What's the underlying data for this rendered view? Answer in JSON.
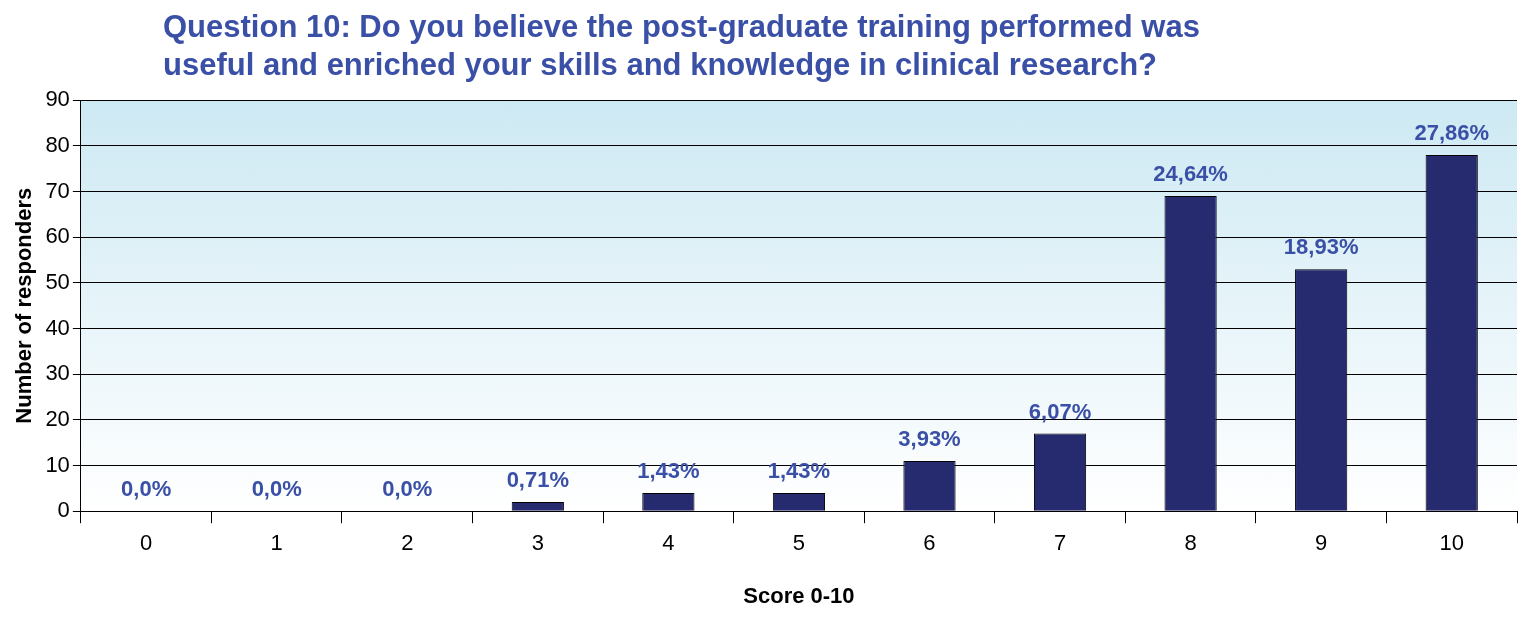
{
  "chart_data": {
    "type": "bar",
    "title": "Question 10: Do you believe the post-graduate training performed was useful and enriched your skills and knowledge in clinical research?",
    "xlabel": "Score 0-10",
    "ylabel": "Number of responders",
    "categories": [
      "0",
      "1",
      "2",
      "3",
      "4",
      "5",
      "6",
      "7",
      "8",
      "9",
      "10"
    ],
    "values": [
      0,
      0,
      0,
      2,
      4,
      4,
      11,
      17,
      69,
      53,
      78
    ],
    "annotations": [
      {
        "text": "0,0%",
        "x": "0",
        "y": 0
      },
      {
        "text": "0,0%",
        "x": "1",
        "y": 0
      },
      {
        "text": "0,0%",
        "x": "2",
        "y": 0
      },
      {
        "text": "0,71%",
        "x": "3",
        "y": 2
      },
      {
        "text": "1,43%",
        "x": "4",
        "y": 4
      },
      {
        "text": "1,43%",
        "x": "5",
        "y": 4
      },
      {
        "text": "3,93%",
        "x": "6",
        "y": 11
      },
      {
        "text": "6,07%",
        "x": "7",
        "y": 17
      },
      {
        "text": "24,64%",
        "x": "8",
        "y": 69
      },
      {
        "text": "18,93%",
        "x": "9",
        "y": 53
      },
      {
        "text": "27,86%",
        "x": "10",
        "y": 78
      }
    ],
    "color": "#262a6e",
    "ylim": [
      0,
      90
    ],
    "yticks": [
      0,
      10,
      20,
      30,
      40,
      50,
      60,
      70,
      80,
      90
    ],
    "grid": "y",
    "legend": false
  }
}
